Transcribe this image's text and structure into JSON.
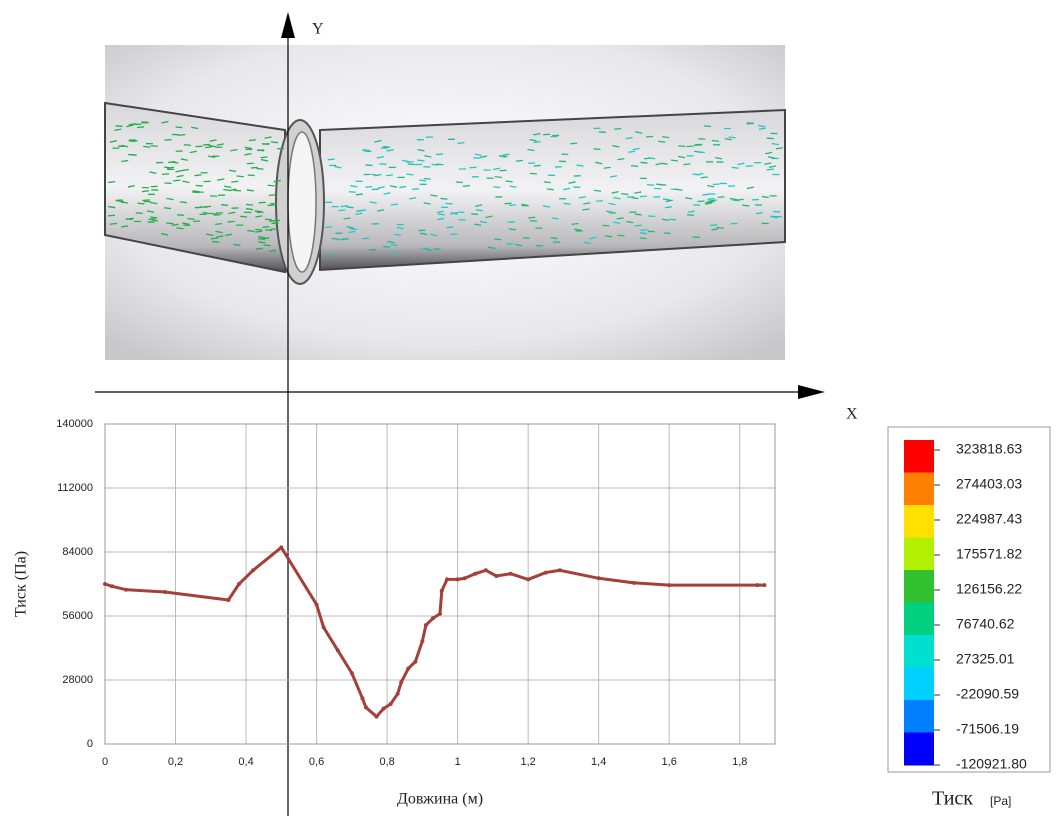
{
  "overlay": {
    "y_axis": "Y",
    "x_axis": "X"
  },
  "chart_data": {
    "type": "line",
    "xlabel": "Довжина (м)",
    "ylabel": "Тиск (Па)",
    "x": [
      0,
      0.02,
      0.06,
      0.17,
      0.35,
      0.38,
      0.42,
      0.5,
      0.6,
      0.62,
      0.66,
      0.7,
      0.73,
      0.74,
      0.77,
      0.79,
      0.81,
      0.83,
      0.84,
      0.86,
      0.88,
      0.9,
      0.91,
      0.93,
      0.95,
      0.955,
      0.97,
      1.0,
      1.02,
      1.05,
      1.08,
      1.11,
      1.15,
      1.2,
      1.25,
      1.29,
      1.4,
      1.5,
      1.6,
      1.85,
      1.87
    ],
    "values": [
      70000,
      69000,
      67500,
      66500,
      63000,
      70000,
      76000,
      86000,
      61000,
      51000,
      41000,
      31000,
      20000,
      16000,
      12000,
      15500,
      17500,
      22000,
      27000,
      33000,
      36000,
      45000,
      52000,
      55000,
      57000,
      67000,
      72000,
      72000,
      72500,
      74500,
      76000,
      73500,
      74500,
      72000,
      75000,
      76000,
      72500,
      70500,
      69500,
      69500,
      69500
    ],
    "color": "#a3403a",
    "xlim": [
      0,
      1.9
    ],
    "xticks": [
      0,
      {
        "value": 0.2,
        "label": "0,2"
      },
      {
        "value": 0.4,
        "label": "0,4"
      },
      {
        "value": 0.6,
        "label": "0,6"
      },
      {
        "value": 0.8,
        "label": "0,8"
      },
      1,
      {
        "value": 1.2,
        "label": "1,2"
      },
      {
        "value": 1.4,
        "label": "1,4"
      },
      {
        "value": 1.6,
        "label": "1,6"
      },
      {
        "value": 1.8,
        "label": "1,8"
      }
    ],
    "ylim": [
      0,
      140000
    ],
    "yticks": [
      0,
      28000,
      56000,
      84000,
      112000,
      140000
    ],
    "grid": true
  },
  "colorbar": {
    "title": "Тиск",
    "unit": "[Pa]",
    "labels": [
      323818.63,
      274403.03,
      224987.43,
      175571.82,
      126156.22,
      76740.62,
      27325.01,
      -22090.59,
      -71506.19,
      {
        "value": -120921.8,
        "label": "-120921.80"
      }
    ],
    "colors": [
      "#ff0000",
      "#ff8000",
      "#ffe000",
      "#b0f000",
      "#30c030",
      "#00d080",
      "#00e0d0",
      "#00d0ff",
      "#0080ff",
      "#0000ff"
    ]
  }
}
